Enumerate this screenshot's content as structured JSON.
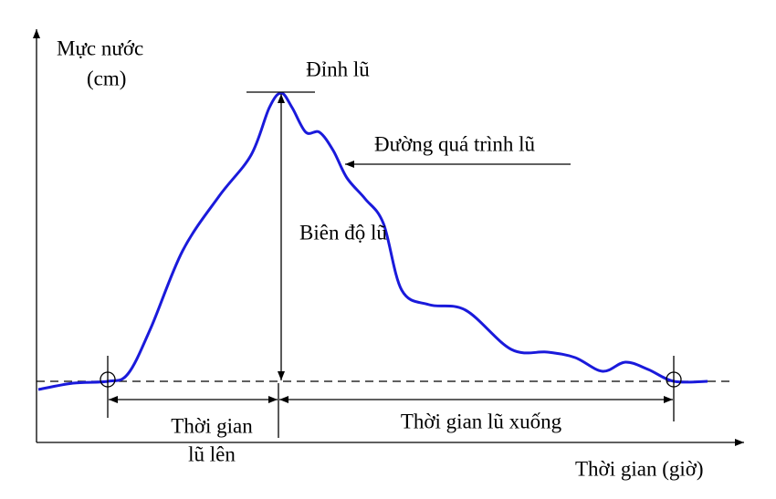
{
  "axes": {
    "y_label": [
      "Mực nước",
      "(cm)"
    ],
    "x_label": "Thời gian (giờ)"
  },
  "annotations": {
    "peak": "Đỉnh lũ",
    "hydrograph": "Đường quá trình lũ",
    "amplitude": "Biên độ lũ",
    "rising_time": [
      "Thời gian",
      "lũ lên"
    ],
    "falling_time": "Thời gian lũ xuống"
  }
}
